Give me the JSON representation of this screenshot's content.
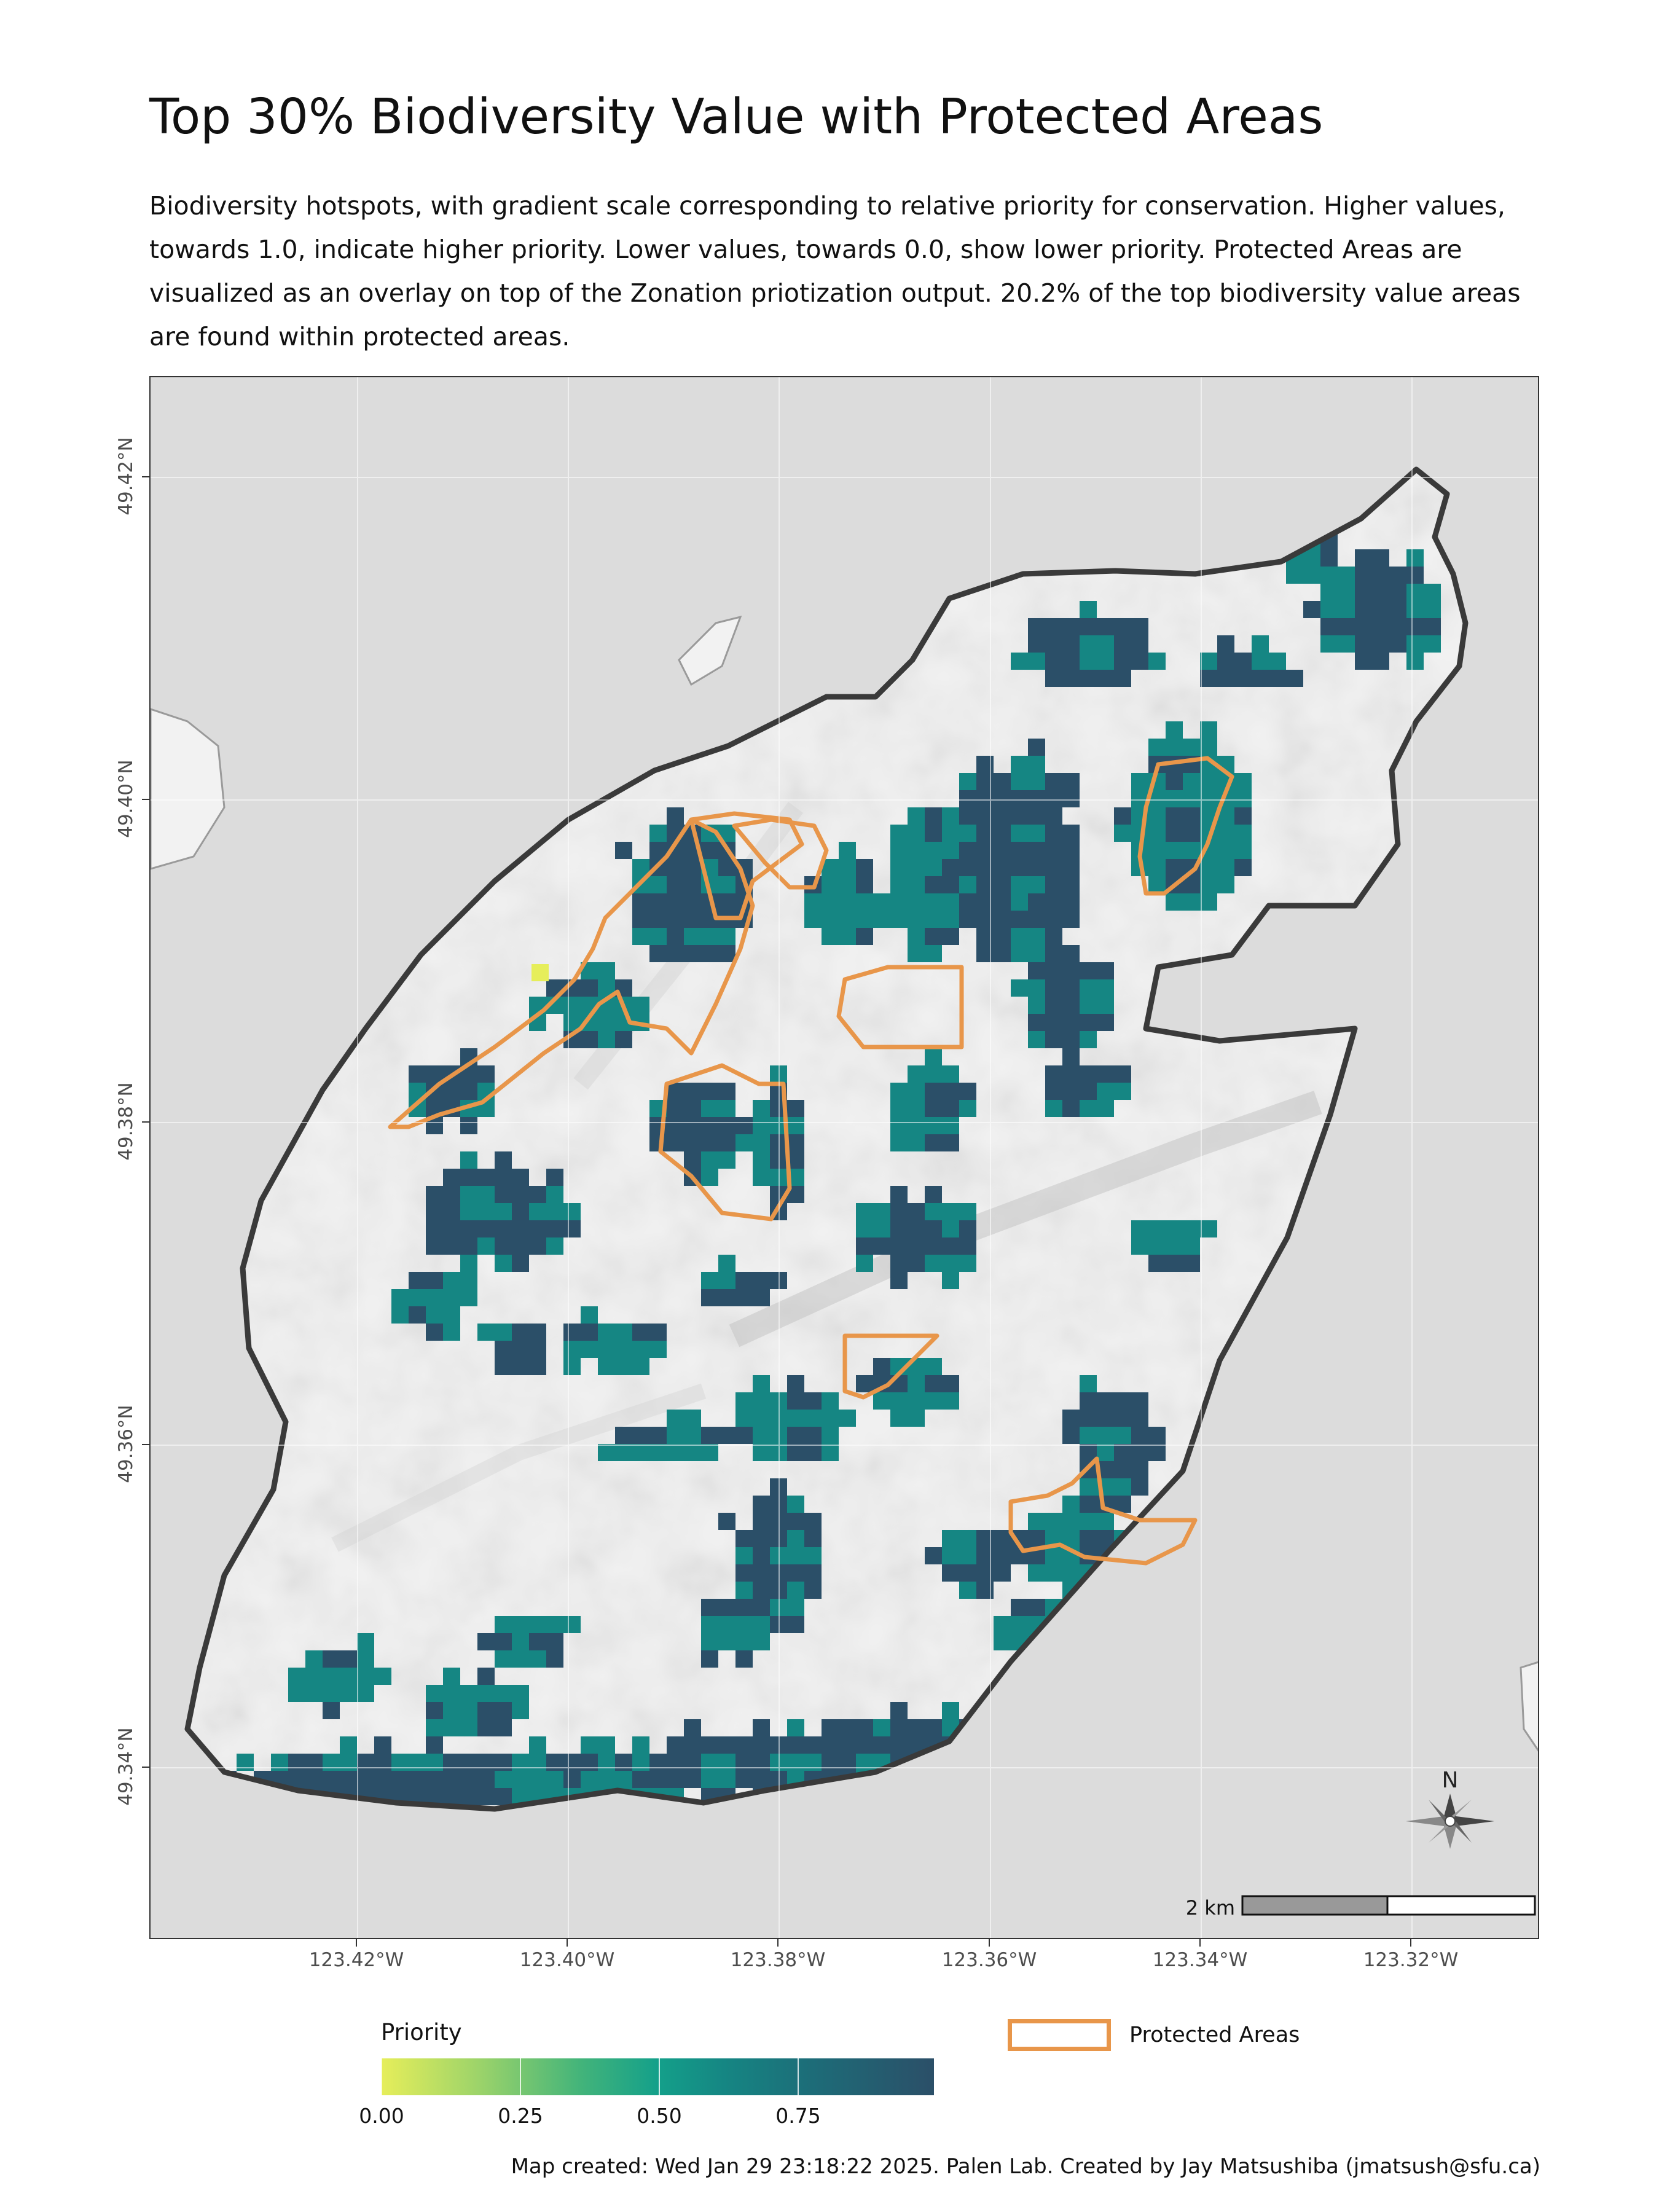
{
  "title": "Top 30% Biodiversity Value with Protected Areas",
  "subtitle": "Biodiversity hotspots, with gradient scale corresponding to relative priority for conservation. Higher values, towards 1.0, indicate higher priority. Lower values, towards 0.0, show lower priority. Protected Areas are visualized as an overlay on top of the Zonation priotization output. 20.2% of the top biodiversity value areas are found within protected areas.",
  "axes": {
    "x_ticks": [
      "123.42°W",
      "123.40°W",
      "123.38°W",
      "123.36°W",
      "123.34°W",
      "123.32°W"
    ],
    "y_ticks": [
      "49.42°N",
      "49.40°N",
      "49.38°N",
      "49.36°N",
      "49.34°N"
    ]
  },
  "scale_bar": {
    "label": "2 km"
  },
  "north_arrow": {
    "label": "N",
    "icon": "compass-rose-icon"
  },
  "legend": {
    "priority_title": "Priority",
    "priority_ticks": [
      "0.00",
      "0.25",
      "0.50",
      "0.75"
    ],
    "protected_label": "Protected Areas"
  },
  "colors": {
    "water": "#dcdcdc",
    "land": "#f2f2f2",
    "coast_outline": "#3a3a3a",
    "protected_outline": "#e8964a",
    "high_priority": "#2b4f68",
    "mid_priority": "#158683",
    "low_priority": "#e6ee5a"
  },
  "caption": "Map created: Wed Jan 29 23:18:22 2025. Palen Lab. Created by Jay Matsushiba (jmatsush@sfu.ca)"
}
